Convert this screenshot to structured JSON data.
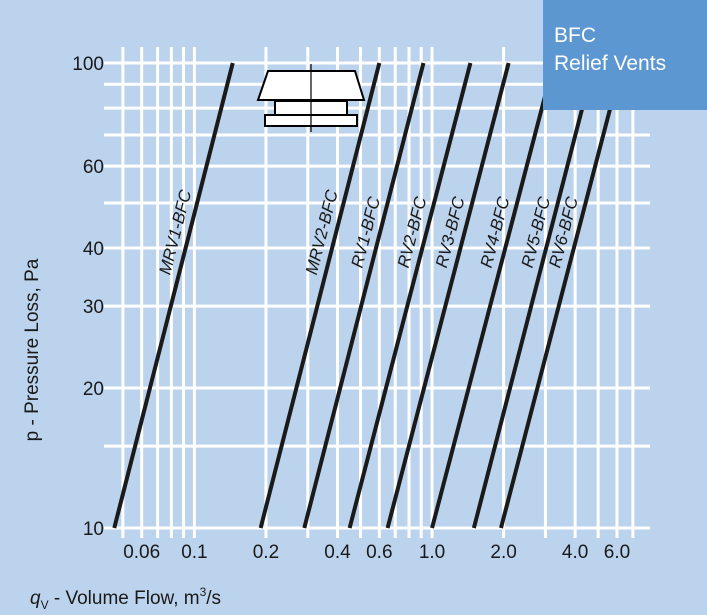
{
  "badge": {
    "line1": "BFC",
    "line2": "Relief Vents"
  },
  "icon_colors": {
    "fill": "#ffffff",
    "stroke": "#000000"
  },
  "chart_data": {
    "type": "line",
    "x_scale": "log",
    "y_scale": "log",
    "xlim": [
      0.045,
      7.5
    ],
    "ylim": [
      10,
      100
    ],
    "ylabel": "p - Pressure Loss, Pa",
    "xlabel": "qV - Volume Flow, m³/s",
    "xlabel_parts": {
      "symbol": "q",
      "subscript": "V",
      "text": " - Volume Flow, m",
      "superscript": "3",
      "tail": "/s"
    },
    "x_ticks": [
      {
        "value": 0.06,
        "label": "0.06"
      },
      {
        "value": 0.1,
        "label": "0.1"
      },
      {
        "value": 0.2,
        "label": "0.2"
      },
      {
        "value": 0.4,
        "label": "0.4"
      },
      {
        "value": 0.6,
        "label": "0.6"
      },
      {
        "value": 1.0,
        "label": "1.0"
      },
      {
        "value": 2.0,
        "label": "2.0"
      },
      {
        "value": 4.0,
        "label": "4.0"
      },
      {
        "value": 6.0,
        "label": "6.0"
      }
    ],
    "y_ticks": [
      {
        "value": 10,
        "label": "10"
      },
      {
        "value": 20,
        "label": "20"
      },
      {
        "value": 30,
        "label": "30"
      },
      {
        "value": 40,
        "label": "40"
      },
      {
        "value": 60,
        "label": "60"
      },
      {
        "value": 100,
        "label": "100"
      }
    ],
    "x_grid": [
      0.05,
      0.06,
      0.07,
      0.08,
      0.09,
      0.1,
      0.2,
      0.3,
      0.4,
      0.5,
      0.6,
      0.7,
      0.8,
      0.9,
      1.0,
      2.0,
      3.0,
      4.0,
      5.0,
      6.0,
      7.0
    ],
    "y_grid": [
      10,
      15,
      20,
      30,
      40,
      50,
      60,
      70,
      80,
      90,
      100
    ],
    "grid": true,
    "series": [
      {
        "name": "MRV1-BFC",
        "points": [
          [
            0.046,
            10
          ],
          [
            0.145,
            100
          ]
        ]
      },
      {
        "name": "MRV2-BFC",
        "points": [
          [
            0.19,
            10
          ],
          [
            0.6,
            100
          ]
        ]
      },
      {
        "name": "RV1-BFC",
        "points": [
          [
            0.29,
            10
          ],
          [
            0.92,
            100
          ]
        ]
      },
      {
        "name": "RV2-BFC",
        "points": [
          [
            0.45,
            10
          ],
          [
            1.45,
            100
          ]
        ]
      },
      {
        "name": "RV3-BFC",
        "points": [
          [
            0.65,
            10
          ],
          [
            2.1,
            100
          ]
        ]
      },
      {
        "name": "RV4-BFC",
        "points": [
          [
            1.0,
            10
          ],
          [
            3.25,
            100
          ]
        ]
      },
      {
        "name": "RV5-BFC",
        "points": [
          [
            1.5,
            10
          ],
          [
            4.8,
            100
          ]
        ]
      },
      {
        "name": "RV6-BFC",
        "points": [
          [
            1.95,
            10
          ],
          [
            6.3,
            100
          ]
        ]
      }
    ]
  }
}
